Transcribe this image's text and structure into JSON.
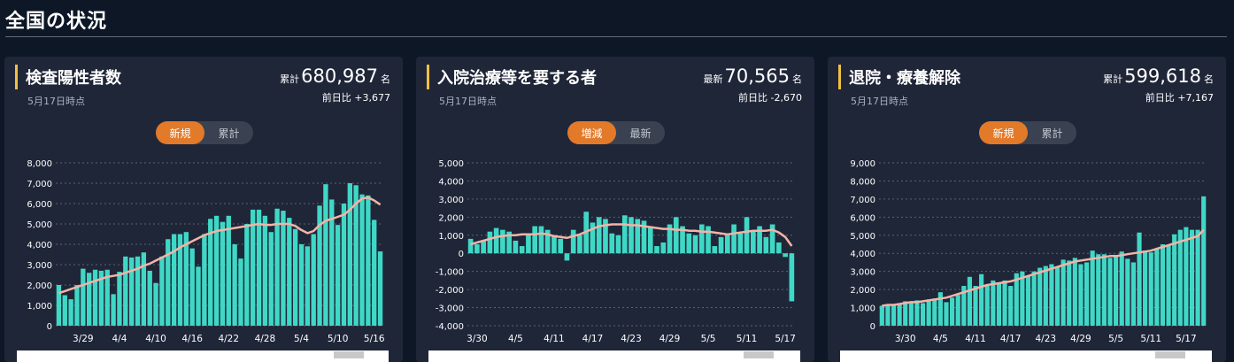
{
  "page": {
    "title": "全国の状況"
  },
  "colors": {
    "bar": "#3fd8c6",
    "line": "#f3b4a8",
    "accent_toggle": "#e27a2a",
    "title_bar": "#f0c040"
  },
  "cards": [
    {
      "title": "検査陽性者数",
      "date": "5月17日時点",
      "total_label": "累計",
      "total_value": "680,987",
      "unit": "名",
      "diff": "前日比 +3,677",
      "toggle": [
        "新規",
        "累計"
      ],
      "toggle_active": 0
    },
    {
      "title": "入院治療等を要する者",
      "date": "5月17日時点",
      "total_label": "最新",
      "total_value": "70,565",
      "unit": "名",
      "diff": "前日比 -2,670",
      "toggle": [
        "増減",
        "最新"
      ],
      "toggle_active": 0
    },
    {
      "title": "退院・療養解除",
      "date": "5月17日時点",
      "total_label": "累計",
      "total_value": "599,618",
      "unit": "名",
      "diff": "前日比 +7,167",
      "toggle": [
        "新規",
        "累計"
      ],
      "toggle_active": 0
    }
  ],
  "chart_data": [
    {
      "type": "bar",
      "title": "検査陽性者数",
      "series_kind": "daily new cases with 7-day average line",
      "yticks": [
        "8,000",
        "7,000",
        "6,000",
        "5,000",
        "4,000",
        "3,000",
        "2,000",
        "1,000",
        "0"
      ],
      "ylim": [
        0,
        8000
      ],
      "xticks": [
        {
          "label": "3/29",
          "index": 4
        },
        {
          "label": "4/4",
          "index": 10
        },
        {
          "label": "4/10",
          "index": 16
        },
        {
          "label": "4/16",
          "index": 22
        },
        {
          "label": "4/22",
          "index": 28
        },
        {
          "label": "4/28",
          "index": 34
        },
        {
          "label": "5/4",
          "index": 40
        },
        {
          "label": "5/10",
          "index": 46
        },
        {
          "label": "5/16",
          "index": 52
        }
      ],
      "values": [
        2000,
        1500,
        1300,
        2000,
        2800,
        2600,
        2750,
        2700,
        2750,
        1550,
        2650,
        3400,
        3350,
        3400,
        3600,
        2700,
        2100,
        3400,
        4250,
        4500,
        4500,
        4600,
        3800,
        2900,
        4500,
        5250,
        5400,
        5100,
        5400,
        4000,
        3300,
        5000,
        5700,
        5700,
        5400,
        4600,
        5750,
        5650,
        5300,
        4750,
        4000,
        3900,
        4500,
        5900,
        6950,
        6200,
        4950,
        6000,
        7000,
        6900,
        6450,
        6400,
        5200,
        3650
      ],
      "avg": [
        1600,
        1700,
        1800,
        1900,
        2000,
        2100,
        2200,
        2300,
        2400,
        2450,
        2500,
        2600,
        2700,
        2800,
        2950,
        3050,
        3200,
        3350,
        3500,
        3650,
        3850,
        4000,
        4150,
        4300,
        4450,
        4550,
        4650,
        4700,
        4750,
        4800,
        4850,
        4900,
        4950,
        5000,
        4950,
        4950,
        5000,
        5000,
        5000,
        4900,
        4700,
        4550,
        4650,
        4950,
        5150,
        5250,
        5350,
        5450,
        5700,
        6000,
        6250,
        6300,
        6150,
        5950
      ]
    },
    {
      "type": "bar",
      "title": "入院治療等を要する者",
      "series_kind": "daily change with 7-day average line",
      "yticks": [
        "5,000",
        "4,000",
        "3,000",
        "2,000",
        "1,000",
        "0",
        "-1,000",
        "-2,000",
        "-3,000",
        "-4,000"
      ],
      "ylim": [
        -4000,
        5000
      ],
      "xticks": [
        {
          "label": "3/30",
          "index": 1
        },
        {
          "label": "4/5",
          "index": 7
        },
        {
          "label": "4/11",
          "index": 13
        },
        {
          "label": "4/17",
          "index": 19
        },
        {
          "label": "4/23",
          "index": 25
        },
        {
          "label": "4/29",
          "index": 31
        },
        {
          "label": "5/5",
          "index": 37
        },
        {
          "label": "5/11",
          "index": 43
        },
        {
          "label": "5/17",
          "index": 49
        }
      ],
      "values": [
        800,
        500,
        700,
        1200,
        1400,
        1300,
        1200,
        700,
        400,
        1000,
        1500,
        1500,
        1300,
        1000,
        800,
        -400,
        1300,
        1000,
        2300,
        1700,
        2000,
        1900,
        1100,
        1000,
        2100,
        2000,
        1900,
        1800,
        1500,
        400,
        600,
        1600,
        2000,
        1500,
        1100,
        1000,
        1600,
        1500,
        400,
        900,
        1000,
        1600,
        1100,
        2000,
        1200,
        1500,
        900,
        1600,
        600,
        -200,
        -2650
      ],
      "avg": [
        500,
        600,
        700,
        800,
        900,
        950,
        1000,
        1000,
        1050,
        1050,
        1050,
        1100,
        1050,
        950,
        900,
        850,
        950,
        1050,
        1200,
        1350,
        1500,
        1550,
        1600,
        1600,
        1600,
        1550,
        1550,
        1500,
        1450,
        1400,
        1350,
        1350,
        1300,
        1300,
        1250,
        1250,
        1200,
        1200,
        1150,
        1100,
        1050,
        1100,
        1150,
        1200,
        1250,
        1250,
        1250,
        1300,
        1150,
        900,
        400
      ]
    },
    {
      "type": "bar",
      "title": "退院・療養解除",
      "series_kind": "daily new recoveries with 7-day average line",
      "yticks": [
        "9,000",
        "8,000",
        "7,000",
        "6,000",
        "5,000",
        "4,000",
        "3,000",
        "2,000",
        "1,000",
        "0"
      ],
      "ylim": [
        0,
        9000
      ],
      "xticks": [
        {
          "label": "3/30",
          "index": 4
        },
        {
          "label": "4/5",
          "index": 10
        },
        {
          "label": "4/11",
          "index": 16
        },
        {
          "label": "4/17",
          "index": 22
        },
        {
          "label": "4/23",
          "index": 28
        },
        {
          "label": "4/29",
          "index": 34
        },
        {
          "label": "5/5",
          "index": 40
        },
        {
          "label": "5/11",
          "index": 46
        },
        {
          "label": "5/17",
          "index": 52
        }
      ],
      "values": [
        1100,
        1100,
        1200,
        1200,
        1350,
        1300,
        1400,
        1250,
        1450,
        1500,
        1850,
        1300,
        1550,
        1700,
        2200,
        2700,
        2200,
        2850,
        2200,
        2500,
        2350,
        2500,
        2200,
        2900,
        3000,
        2750,
        3000,
        3200,
        3300,
        3400,
        3250,
        3650,
        3600,
        3750,
        3400,
        3500,
        4150,
        3950,
        3950,
        3750,
        3900,
        4100,
        3700,
        3500,
        5150,
        4150,
        4050,
        4250,
        4500,
        4450,
        5050,
        5300,
        5450,
        5300,
        5300,
        7150
      ],
      "avg": [
        1100,
        1150,
        1150,
        1200,
        1250,
        1300,
        1300,
        1350,
        1400,
        1450,
        1500,
        1550,
        1650,
        1750,
        1850,
        1950,
        2050,
        2150,
        2250,
        2300,
        2350,
        2400,
        2450,
        2550,
        2650,
        2750,
        2850,
        2950,
        3050,
        3150,
        3250,
        3350,
        3450,
        3550,
        3600,
        3650,
        3700,
        3750,
        3800,
        3850,
        3850,
        3900,
        3950,
        4000,
        4050,
        4100,
        4150,
        4250,
        4350,
        4450,
        4550,
        4650,
        4750,
        4850,
        4950,
        5300
      ]
    }
  ]
}
